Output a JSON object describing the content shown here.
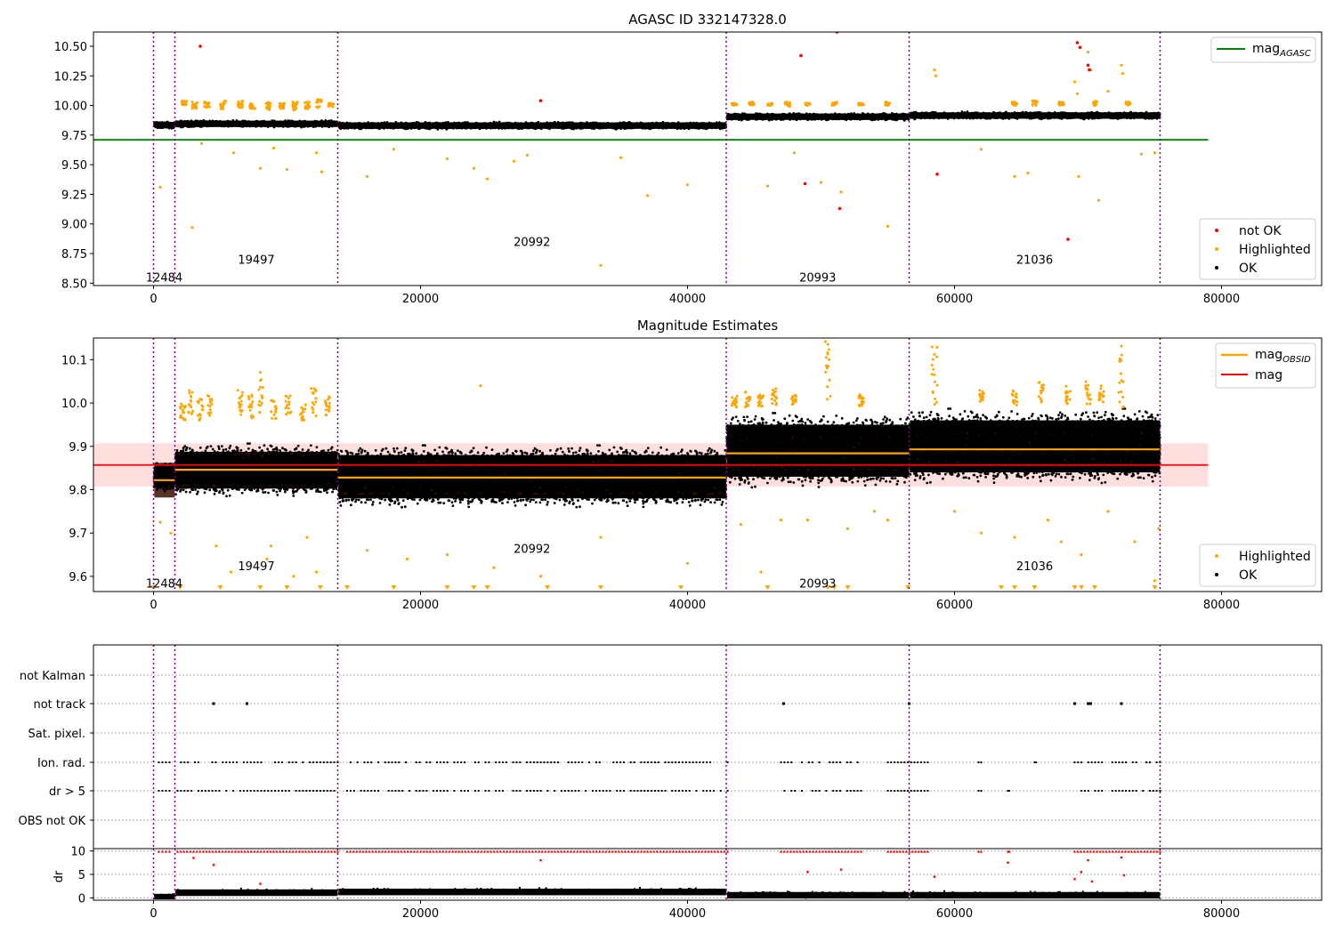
{
  "chart_data": [
    {
      "type": "scatter",
      "title": "AGASC ID 332147328.0",
      "xlim": [
        -4500,
        87500
      ],
      "ylim": [
        8.48,
        10.62
      ],
      "xticks": [
        0,
        20000,
        40000,
        60000,
        80000
      ],
      "yticks": [
        8.5,
        8.75,
        9.0,
        9.25,
        9.5,
        9.75,
        10.0,
        10.25,
        10.5
      ],
      "ytick_labels": [
        "8.50",
        "8.75",
        "9.00",
        "9.25",
        "9.50",
        "9.75",
        "10.00",
        "10.25",
        "10.50"
      ],
      "hline": {
        "label": "mag",
        "label_sub": "AGASC",
        "y": 9.71,
        "x": [
          -4500,
          79000
        ],
        "color": "#008000"
      },
      "segments": [
        {
          "obsid": "12484",
          "start": 0,
          "end": 1600,
          "median": 9.835,
          "label_y": 8.55
        },
        {
          "obsid": "19497",
          "start": 1600,
          "end": 13800,
          "median": 9.845,
          "label_y": 8.7
        },
        {
          "obsid": "20992",
          "start": 13800,
          "end": 42900,
          "median": 9.83,
          "label_y": 8.85
        },
        {
          "obsid": "20993",
          "start": 42900,
          "end": 56600,
          "median": 9.905,
          "label_y": 8.55
        },
        {
          "obsid": "21036",
          "start": 56600,
          "end": 75400,
          "median": 9.915,
          "label_y": 8.7
        }
      ],
      "highlighted_points": [
        [
          500,
          9.31
        ],
        [
          2900,
          8.97
        ],
        [
          3600,
          9.68
        ],
        [
          6000,
          9.6
        ],
        [
          8000,
          9.47
        ],
        [
          9000,
          9.64
        ],
        [
          10000,
          9.46
        ],
        [
          12200,
          9.6
        ],
        [
          12600,
          9.44
        ],
        [
          16000,
          9.4
        ],
        [
          18000,
          9.63
        ],
        [
          22000,
          9.55
        ],
        [
          24000,
          9.47
        ],
        [
          25000,
          9.38
        ],
        [
          27000,
          9.53
        ],
        [
          28000,
          9.58
        ],
        [
          33500,
          8.65
        ],
        [
          35000,
          9.56
        ],
        [
          37000,
          9.24
        ],
        [
          40000,
          9.33
        ],
        [
          46000,
          9.32
        ],
        [
          48000,
          9.6
        ],
        [
          50000,
          9.35
        ],
        [
          51500,
          9.27
        ],
        [
          55000,
          8.98
        ],
        [
          58500,
          10.3
        ],
        [
          58600,
          10.25
        ],
        [
          62000,
          9.63
        ],
        [
          64500,
          9.4
        ],
        [
          65500,
          9.43
        ],
        [
          69000,
          10.2
        ],
        [
          69200,
          10.1
        ],
        [
          69300,
          9.4
        ],
        [
          70000,
          10.45
        ],
        [
          70200,
          10.3
        ],
        [
          70800,
          9.2
        ],
        [
          71500,
          10.12
        ],
        [
          72500,
          10.34
        ],
        [
          72600,
          10.27
        ],
        [
          74000,
          9.59
        ],
        [
          75000,
          9.6
        ]
      ],
      "highlighted_bands": [
        [
          2300,
          10.0,
          10.04
        ],
        [
          3100,
          9.97,
          10.03
        ],
        [
          4000,
          9.98,
          10.03
        ],
        [
          5200,
          9.97,
          10.04
        ],
        [
          6500,
          9.98,
          10.04
        ],
        [
          7400,
          9.97,
          10.03
        ],
        [
          8600,
          9.96,
          10.03
        ],
        [
          9600,
          9.97,
          10.02
        ],
        [
          10600,
          9.96,
          10.03
        ],
        [
          11500,
          9.97,
          10.03
        ],
        [
          12400,
          9.98,
          10.05
        ],
        [
          13300,
          9.98,
          10.02
        ],
        [
          43500,
          10.0,
          10.02
        ],
        [
          44800,
          10.0,
          10.03
        ],
        [
          46200,
          10.0,
          10.02
        ],
        [
          47500,
          9.99,
          10.03
        ],
        [
          49000,
          10.0,
          10.02
        ],
        [
          51000,
          10.0,
          10.03
        ],
        [
          53000,
          10.0,
          10.02
        ],
        [
          55000,
          10.0,
          10.03
        ],
        [
          64500,
          10.0,
          10.03
        ],
        [
          66000,
          10.0,
          10.04
        ],
        [
          68000,
          10.0,
          10.03
        ],
        [
          70500,
          10.0,
          10.04
        ],
        [
          73000,
          10.0,
          10.03
        ]
      ],
      "not_ok_points": [
        [
          3500,
          10.5
        ],
        [
          29000,
          10.04
        ],
        [
          48500,
          10.42
        ],
        [
          48800,
          9.34
        ],
        [
          51200,
          10.62
        ],
        [
          51400,
          9.13
        ],
        [
          58700,
          9.42
        ],
        [
          68500,
          8.87
        ],
        [
          69200,
          10.53
        ],
        [
          69400,
          10.49
        ],
        [
          70000,
          10.34
        ],
        [
          70100,
          10.3
        ]
      ],
      "band_width": 0.06,
      "legend": [
        {
          "label": "not OK",
          "color": "#ff0000"
        },
        {
          "label": "Highlighted",
          "color": "#ffa500"
        },
        {
          "label": "OK",
          "color": "#000000"
        }
      ]
    },
    {
      "type": "scatter",
      "title": "Magnitude Estimates",
      "xlim": [
        -4500,
        87500
      ],
      "ylim": [
        9.565,
        10.15
      ],
      "xticks": [
        0,
        20000,
        40000,
        60000,
        80000
      ],
      "yticks": [
        9.6,
        9.7,
        9.8,
        9.9,
        10.0,
        10.1
      ],
      "ytick_labels": [
        "9.6",
        "9.7",
        "9.8",
        "9.9",
        "10.0",
        "10.1"
      ],
      "mag": {
        "label": "mag",
        "y": 9.857,
        "band": [
          9.807,
          9.907
        ],
        "x": [
          -4500,
          79000
        ],
        "color": "#ff0000"
      },
      "mag_obsid": {
        "label": "mag",
        "label_sub": "OBSID",
        "color": "#ffa500"
      },
      "segments": [
        {
          "obsid": "12484",
          "start": 0,
          "end": 1600,
          "median": 9.822,
          "center": 9.83,
          "spread": 0.05,
          "label_y": 9.585
        },
        {
          "obsid": "19497",
          "start": 1600,
          "end": 13800,
          "median": 9.846,
          "center": 9.845,
          "spread": 0.085,
          "label_y": 9.625
        },
        {
          "obsid": "20992",
          "start": 13800,
          "end": 42900,
          "median": 9.828,
          "center": 9.83,
          "spread": 0.1,
          "label_y": 9.665
        },
        {
          "obsid": "20993",
          "start": 42900,
          "end": 56600,
          "median": 9.884,
          "center": 9.89,
          "spread": 0.12,
          "label_y": 9.585
        },
        {
          "obsid": "21036",
          "start": 56600,
          "end": 75400,
          "median": 9.893,
          "center": 9.9,
          "spread": 0.12,
          "label_y": 9.625
        }
      ],
      "highlighted_points": [
        [
          500,
          9.725
        ],
        [
          1300,
          9.7
        ],
        [
          4700,
          9.67
        ],
        [
          5800,
          9.61
        ],
        [
          8500,
          9.64
        ],
        [
          8800,
          9.67
        ],
        [
          10500,
          9.6
        ],
        [
          11500,
          9.69
        ],
        [
          12200,
          9.61
        ],
        [
          16000,
          9.66
        ],
        [
          19000,
          9.64
        ],
        [
          22000,
          9.65
        ],
        [
          24500,
          10.04
        ],
        [
          25500,
          9.62
        ],
        [
          29000,
          9.6
        ],
        [
          33500,
          9.69
        ],
        [
          40000,
          9.63
        ],
        [
          44000,
          9.72
        ],
        [
          45500,
          9.61
        ],
        [
          47000,
          9.73
        ],
        [
          49000,
          9.73
        ],
        [
          52000,
          9.71
        ],
        [
          54000,
          9.75
        ],
        [
          55000,
          9.73
        ],
        [
          60000,
          9.75
        ],
        [
          62000,
          9.7
        ],
        [
          64500,
          9.69
        ],
        [
          67000,
          9.73
        ],
        [
          68000,
          9.68
        ],
        [
          69500,
          9.65
        ],
        [
          71500,
          9.75
        ],
        [
          73500,
          9.68
        ],
        [
          75000,
          9.59
        ],
        [
          75300,
          9.71
        ]
      ],
      "highlighted_bands": [
        [
          2200,
          9.96,
          10.0
        ],
        [
          2800,
          9.97,
          10.03
        ],
        [
          3500,
          9.96,
          10.01
        ],
        [
          4200,
          9.97,
          10.02
        ],
        [
          6500,
          9.97,
          10.03
        ],
        [
          7300,
          9.96,
          10.02
        ],
        [
          8000,
          9.97,
          10.08
        ],
        [
          9000,
          9.96,
          10.01
        ],
        [
          10100,
          9.97,
          10.02
        ],
        [
          11200,
          9.96,
          10.0
        ],
        [
          12000,
          9.97,
          10.04
        ],
        [
          13000,
          9.97,
          10.02
        ],
        [
          43500,
          9.99,
          10.02
        ],
        [
          44500,
          9.99,
          10.03
        ],
        [
          45500,
          9.99,
          10.02
        ],
        [
          46500,
          9.99,
          10.04
        ],
        [
          48000,
          9.99,
          10.02
        ],
        [
          50500,
          9.99,
          10.15
        ],
        [
          53000,
          9.99,
          10.02
        ],
        [
          58500,
          9.99,
          10.15
        ],
        [
          62000,
          10.0,
          10.03
        ],
        [
          64500,
          9.99,
          10.03
        ],
        [
          66500,
          10.0,
          10.05
        ],
        [
          68500,
          9.99,
          10.04
        ],
        [
          70000,
          9.99,
          10.05
        ],
        [
          71000,
          10.0,
          10.04
        ],
        [
          72500,
          9.99,
          10.15
        ]
      ],
      "offscale_markers": [
        0,
        2000,
        5000,
        8000,
        10000,
        12500,
        14500,
        18000,
        22000,
        24000,
        25000,
        29500,
        33500,
        39500,
        46000,
        50500,
        51000,
        52000,
        56500,
        63500,
        64500,
        66000,
        69000,
        69500,
        70500,
        75000
      ],
      "legend": [
        {
          "label": "Highlighted",
          "color": "#ffa500"
        },
        {
          "label": "OK",
          "color": "#000000"
        }
      ]
    },
    {
      "type": "scatter",
      "title": "",
      "xlim": [
        -4500,
        87500
      ],
      "xticks": [
        0,
        20000,
        40000,
        60000,
        80000
      ],
      "flags": [
        "not Kalman",
        "not track",
        "Sat. pixel.",
        "Ion. rad.",
        "dr > 5",
        "OBS not OK"
      ],
      "flag_marks": {
        "not track": [
          4500,
          7000,
          47200,
          56600,
          69000,
          70000,
          70200,
          72500
        ],
        "ion_rad_ranges": [
          [
            400,
            1200
          ],
          [
            1800,
            13800
          ],
          [
            14500,
            43000
          ],
          [
            47000,
            53000
          ],
          [
            55000,
            58000
          ],
          [
            61800,
            62000
          ],
          [
            66000,
            66100
          ],
          [
            69000,
            75400
          ]
        ],
        "dr_gt5_ranges": [
          [
            400,
            1200
          ],
          [
            1800,
            13800
          ],
          [
            14500,
            43000
          ],
          [
            47000,
            53000
          ],
          [
            55000,
            58000
          ],
          [
            61800,
            62000
          ],
          [
            64000,
            64100
          ],
          [
            69000,
            75400
          ]
        ]
      },
      "dr": {
        "ylabel": "dr",
        "ylim": [
          -0.5,
          10.5
        ],
        "yticks": [
          0,
          5,
          10
        ]
      }
    }
  ]
}
